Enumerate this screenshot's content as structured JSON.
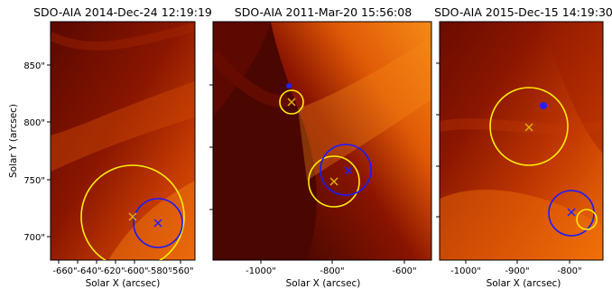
{
  "figure": {
    "ylabel": "Solar Y (arcsec)",
    "panels": [
      {
        "title": "SDO-AIA   2014-Dec-24 12:19:19",
        "xlabel": "Solar X (arcsec)",
        "xticks": [
          "-660\"",
          "-640\"",
          "-620\"",
          "-600\"",
          "-580\"",
          "-560\""
        ],
        "yticks": [
          "850\"",
          "800\"",
          "750\"",
          "700\""
        ],
        "colors": {
          "base": "#7a0d00",
          "bright": "#f06a08",
          "dark": "#3a0600"
        },
        "circles": [
          {
            "name": "yellow-circle",
            "color": "#ffee00"
          },
          {
            "name": "blue-circle",
            "color": "#1a1aff"
          }
        ],
        "markers": [
          {
            "name": "yellow-x-marker",
            "color": "#e0b000"
          },
          {
            "name": "blue-x-marker",
            "color": "#2020ff"
          }
        ]
      },
      {
        "title": "SDO-AIA   2011-Mar-20 15:56:08",
        "xlabel": "Solar X (arcsec)",
        "xticks": [
          "-1000\"",
          "-800\"",
          "-600\""
        ],
        "yticks": [],
        "colors": {
          "base": "#7a0d00",
          "bright": "#f47a10",
          "dark": "#3a0600"
        },
        "circles": [
          {
            "name": "yellow-circle-top",
            "color": "#ffee00"
          },
          {
            "name": "yellow-circle-bottom",
            "color": "#ffee00"
          },
          {
            "name": "blue-circle",
            "color": "#1a1aff"
          }
        ],
        "markers": [
          {
            "name": "yellow-x-marker-top",
            "color": "#e0b000"
          },
          {
            "name": "yellow-x-marker-bottom",
            "color": "#e0b000"
          },
          {
            "name": "blue-x-marker",
            "color": "#2020ff"
          }
        ]
      },
      {
        "title": "SDO-AIA   2015-Dec-15 14:19:30",
        "xlabel": "Solar X (arcsec)",
        "xticks": [
          "-1000\"",
          "-900\"",
          "-800\""
        ],
        "yticks": [],
        "colors": {
          "base": "#8a1400",
          "bright": "#f27008",
          "dark": "#5a0a00"
        },
        "circles": [
          {
            "name": "yellow-circle-large",
            "color": "#ffee00"
          },
          {
            "name": "yellow-circle-small",
            "color": "#ffee00"
          },
          {
            "name": "blue-circle",
            "color": "#1a1aff"
          }
        ],
        "markers": [
          {
            "name": "yellow-x-marker",
            "color": "#e0b000"
          },
          {
            "name": "blue-x-marker",
            "color": "#2020ff"
          }
        ]
      }
    ]
  }
}
